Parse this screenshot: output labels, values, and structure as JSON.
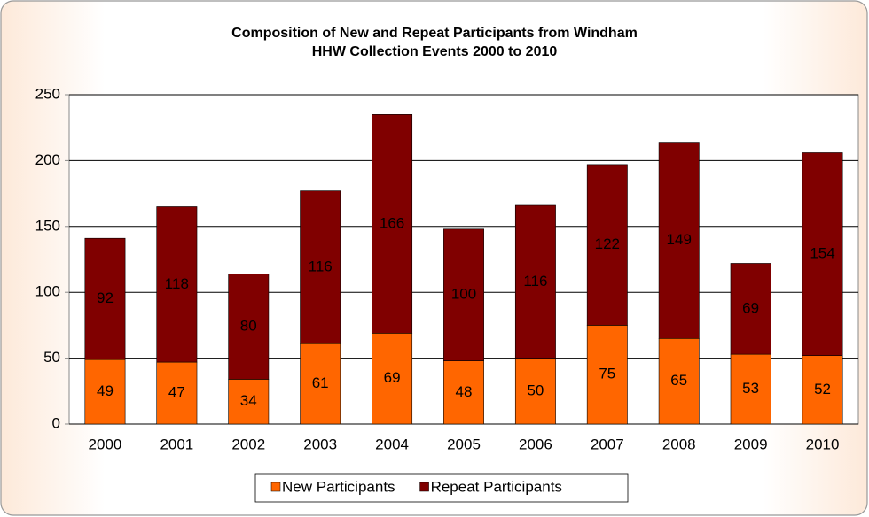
{
  "chart_data": {
    "type": "bar",
    "stacked": true,
    "title": [
      "Composition of New and Repeat Participants from Windham",
      "HHW Collection Events 2000 to 2010"
    ],
    "categories": [
      "2000",
      "2001",
      "2002",
      "2003",
      "2004",
      "2005",
      "2006",
      "2007",
      "2008",
      "2009",
      "2010"
    ],
    "series": [
      {
        "name": "New Participants",
        "color": "#ff6600",
        "label_color": "#000000",
        "values": [
          49,
          47,
          34,
          61,
          69,
          48,
          50,
          75,
          65,
          53,
          52
        ]
      },
      {
        "name": "Repeat Participants",
        "color": "#800000",
        "label_color": "#ffffff",
        "values": [
          92,
          118,
          80,
          116,
          166,
          100,
          116,
          122,
          149,
          69,
          154
        ]
      }
    ],
    "ylim": [
      0,
      250
    ],
    "yticks": [
      0,
      50,
      100,
      150,
      200,
      250
    ],
    "grid": true,
    "legend": "bottom"
  }
}
